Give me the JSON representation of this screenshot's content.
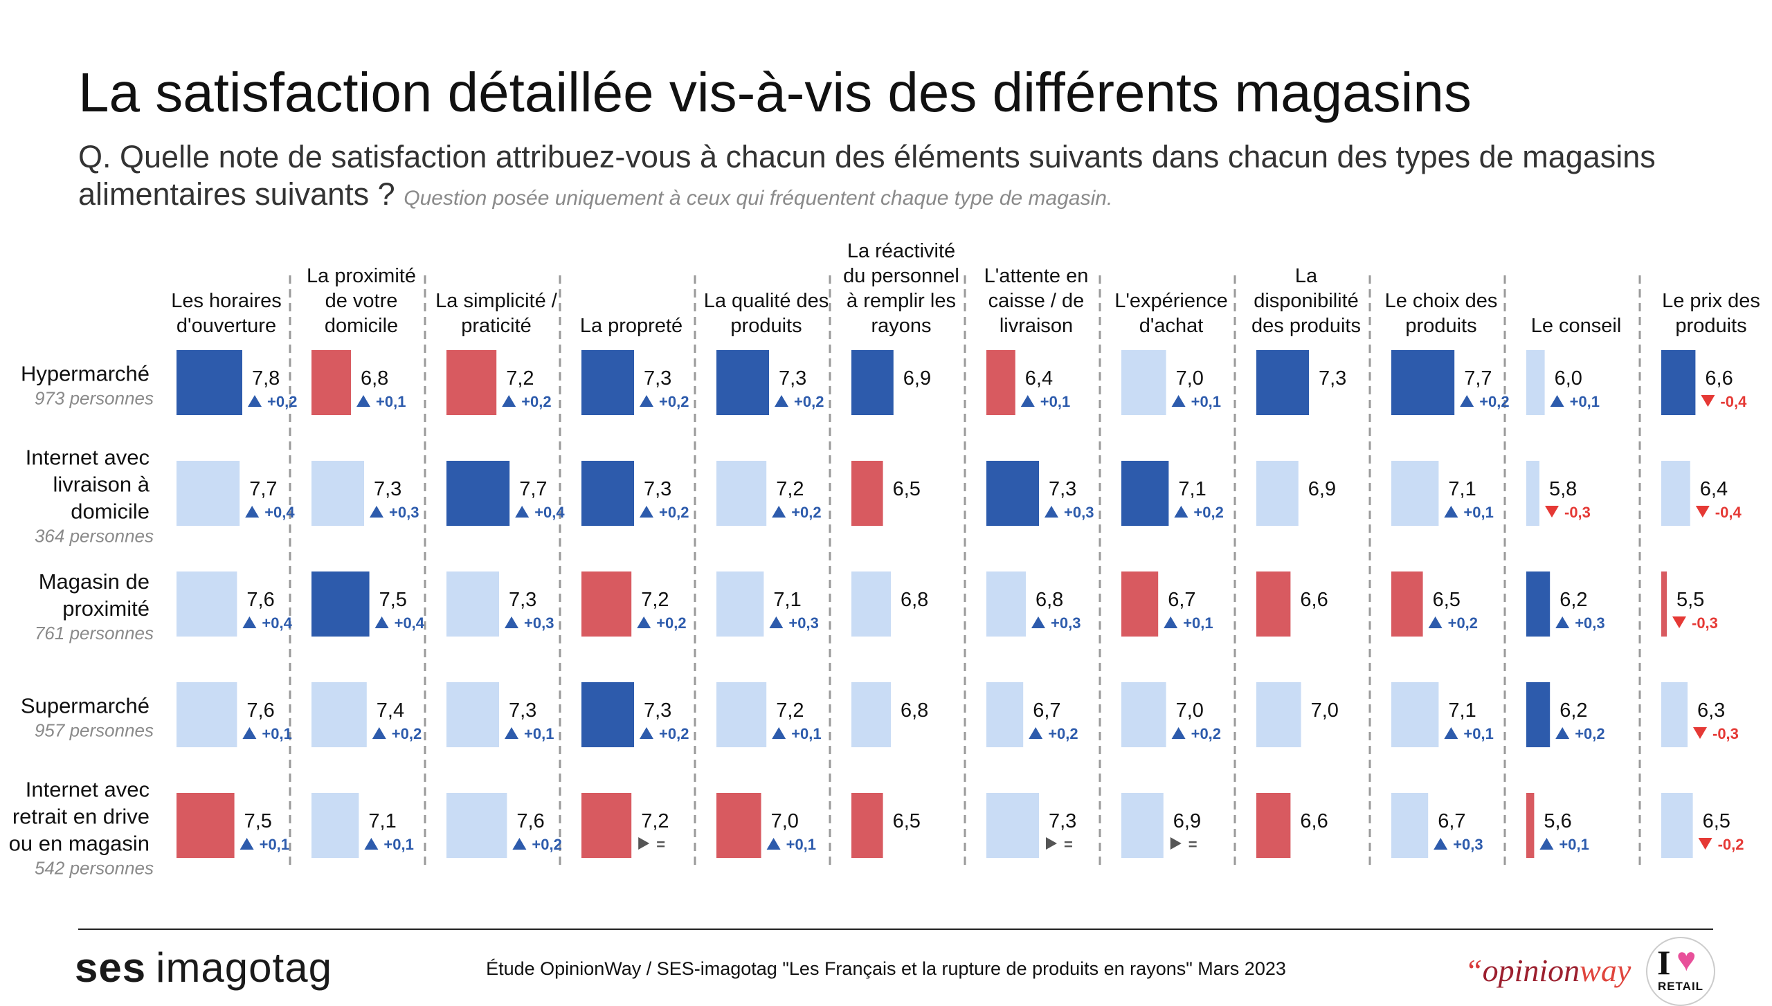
{
  "title": "La satisfaction détaillée vis-à-vis des différents magasins",
  "question": "Q. Quelle note de satisfaction attribuez-vous à chacun des éléments suivants dans chacun des types de magasins alimentaires suivants ?",
  "question_note": "Question posée uniquement à ceux qui fréquentent chaque type de magasin.",
  "footer": {
    "source": "Étude OpinionWay / SES-imagotag \"Les Français et la rupture de produits en rayons\" Mars 2023",
    "ses_logo_bold": "ses",
    "ses_logo_light": "imagotag",
    "opinionway_quote": "“",
    "opinionway_opinion": "opinion",
    "opinionway_way": "way",
    "iretail_i": "I",
    "iretail_heart": "♥",
    "iretail_label": "RETAIL"
  },
  "colors": {
    "above": "#2d5bac",
    "below": "#d85a60",
    "neutral": "#c9dcf5",
    "up": "#2d5bac",
    "down": "#e53935",
    "equal": "#555555"
  },
  "chart_data": {
    "type": "table",
    "columns": [
      {
        "label": [
          "Les horaires",
          "d'ouverture"
        ]
      },
      {
        "label": [
          "La proximité",
          "de votre",
          "domicile"
        ]
      },
      {
        "label": [
          "La simplicité /",
          "praticité"
        ]
      },
      {
        "label": [
          "La propreté"
        ]
      },
      {
        "label": [
          "La qualité des",
          "produits"
        ]
      },
      {
        "label": [
          "La réactivité",
          "du personnel",
          "à remplir les",
          "rayons"
        ]
      },
      {
        "label": [
          "L'attente en",
          "caisse / de",
          "livraison"
        ]
      },
      {
        "label": [
          "L'expérience",
          "d'achat"
        ]
      },
      {
        "label": [
          "La",
          "disponibilité",
          "des produits"
        ]
      },
      {
        "label": [
          "Le choix des",
          "produits"
        ]
      },
      {
        "label": [
          "Le conseil"
        ]
      },
      {
        "label": [
          "Le prix des",
          "produits"
        ]
      }
    ],
    "rows": [
      {
        "label": [
          "Hypermarché"
        ],
        "base": "973 personnes"
      },
      {
        "label": [
          "Internet avec",
          "livraison à",
          "domicile"
        ],
        "base": "364 personnes"
      },
      {
        "label": [
          "Magasin de",
          "proximité"
        ],
        "base": "761 personnes"
      },
      {
        "label": [
          "Supermarché"
        ],
        "base": "957 personnes"
      },
      {
        "label": [
          "Internet avec",
          "retrait en drive",
          "ou en magasin"
        ],
        "base": "542 personnes"
      }
    ],
    "cells": [
      [
        {
          "value": 7.8,
          "label": "7,8",
          "status": "above",
          "evolution": "+0,2",
          "trend": "up"
        },
        {
          "value": 6.8,
          "label": "6,8",
          "status": "below",
          "evolution": "+0,1",
          "trend": "up"
        },
        {
          "value": 7.2,
          "label": "7,2",
          "status": "below",
          "evolution": "+0,2",
          "trend": "up"
        },
        {
          "value": 7.3,
          "label": "7,3",
          "status": "above",
          "evolution": "+0,2",
          "trend": "up"
        },
        {
          "value": 7.3,
          "label": "7,3",
          "status": "above",
          "evolution": "+0,2",
          "trend": "up"
        },
        {
          "value": 6.9,
          "label": "6,9",
          "status": "above",
          "evolution": "",
          "trend": ""
        },
        {
          "value": 6.4,
          "label": "6,4",
          "status": "below",
          "evolution": "+0,1",
          "trend": "up"
        },
        {
          "value": 7.0,
          "label": "7,0",
          "status": "neutral",
          "evolution": "+0,1",
          "trend": "up"
        },
        {
          "value": 7.3,
          "label": "7,3",
          "status": "above",
          "evolution": "",
          "trend": ""
        },
        {
          "value": 7.7,
          "label": "7,7",
          "status": "above",
          "evolution": "+0,2",
          "trend": "up"
        },
        {
          "value": 6.0,
          "label": "6,0",
          "status": "neutral",
          "evolution": "+0,1",
          "trend": "up"
        },
        {
          "value": 6.6,
          "label": "6,6",
          "status": "above",
          "evolution": "-0,4",
          "trend": "down"
        }
      ],
      [
        {
          "value": 7.7,
          "label": "7,7",
          "status": "neutral",
          "evolution": "+0,4",
          "trend": "up"
        },
        {
          "value": 7.3,
          "label": "7,3",
          "status": "neutral",
          "evolution": "+0,3",
          "trend": "up"
        },
        {
          "value": 7.7,
          "label": "7,7",
          "status": "above",
          "evolution": "+0,4",
          "trend": "up"
        },
        {
          "value": 7.3,
          "label": "7,3",
          "status": "above",
          "evolution": "+0,2",
          "trend": "up"
        },
        {
          "value": 7.2,
          "label": "7,2",
          "status": "neutral",
          "evolution": "+0,2",
          "trend": "up"
        },
        {
          "value": 6.5,
          "label": "6,5",
          "status": "below",
          "evolution": "",
          "trend": ""
        },
        {
          "value": 7.3,
          "label": "7,3",
          "status": "above",
          "evolution": "+0,3",
          "trend": "up"
        },
        {
          "value": 7.1,
          "label": "7,1",
          "status": "above",
          "evolution": "+0,2",
          "trend": "up"
        },
        {
          "value": 6.9,
          "label": "6,9",
          "status": "neutral",
          "evolution": "",
          "trend": ""
        },
        {
          "value": 7.1,
          "label": "7,1",
          "status": "neutral",
          "evolution": "+0,1",
          "trend": "up"
        },
        {
          "value": 5.8,
          "label": "5,8",
          "status": "neutral",
          "evolution": "-0,3",
          "trend": "down"
        },
        {
          "value": 6.4,
          "label": "6,4",
          "status": "neutral",
          "evolution": "-0,4",
          "trend": "down"
        }
      ],
      [
        {
          "value": 7.6,
          "label": "7,6",
          "status": "neutral",
          "evolution": "+0,4",
          "trend": "up"
        },
        {
          "value": 7.5,
          "label": "7,5",
          "status": "above",
          "evolution": "+0,4",
          "trend": "up"
        },
        {
          "value": 7.3,
          "label": "7,3",
          "status": "neutral",
          "evolution": "+0,3",
          "trend": "up"
        },
        {
          "value": 7.2,
          "label": "7,2",
          "status": "below",
          "evolution": "+0,2",
          "trend": "up"
        },
        {
          "value": 7.1,
          "label": "7,1",
          "status": "neutral",
          "evolution": "+0,3",
          "trend": "up"
        },
        {
          "value": 6.8,
          "label": "6,8",
          "status": "neutral",
          "evolution": "",
          "trend": ""
        },
        {
          "value": 6.8,
          "label": "6,8",
          "status": "neutral",
          "evolution": "+0,3",
          "trend": "up"
        },
        {
          "value": 6.7,
          "label": "6,7",
          "status": "below",
          "evolution": "+0,1",
          "trend": "up"
        },
        {
          "value": 6.6,
          "label": "6,6",
          "status": "below",
          "evolution": "",
          "trend": ""
        },
        {
          "value": 6.5,
          "label": "6,5",
          "status": "below",
          "evolution": "+0,2",
          "trend": "up"
        },
        {
          "value": 6.2,
          "label": "6,2",
          "status": "above",
          "evolution": "+0,3",
          "trend": "up"
        },
        {
          "value": 5.5,
          "label": "5,5",
          "status": "below",
          "evolution": "-0,3",
          "trend": "down"
        }
      ],
      [
        {
          "value": 7.6,
          "label": "7,6",
          "status": "neutral",
          "evolution": "+0,1",
          "trend": "up"
        },
        {
          "value": 7.4,
          "label": "7,4",
          "status": "neutral",
          "evolution": "+0,2",
          "trend": "up"
        },
        {
          "value": 7.3,
          "label": "7,3",
          "status": "neutral",
          "evolution": "+0,1",
          "trend": "up"
        },
        {
          "value": 7.3,
          "label": "7,3",
          "status": "above",
          "evolution": "+0,2",
          "trend": "up"
        },
        {
          "value": 7.2,
          "label": "7,2",
          "status": "neutral",
          "evolution": "+0,1",
          "trend": "up"
        },
        {
          "value": 6.8,
          "label": "6,8",
          "status": "neutral",
          "evolution": "",
          "trend": ""
        },
        {
          "value": 6.7,
          "label": "6,7",
          "status": "neutral",
          "evolution": "+0,2",
          "trend": "up"
        },
        {
          "value": 7.0,
          "label": "7,0",
          "status": "neutral",
          "evolution": "+0,2",
          "trend": "up"
        },
        {
          "value": 7.0,
          "label": "7,0",
          "status": "neutral",
          "evolution": "",
          "trend": ""
        },
        {
          "value": 7.1,
          "label": "7,1",
          "status": "neutral",
          "evolution": "+0,1",
          "trend": "up"
        },
        {
          "value": 6.2,
          "label": "6,2",
          "status": "above",
          "evolution": "+0,2",
          "trend": "up"
        },
        {
          "value": 6.3,
          "label": "6,3",
          "status": "neutral",
          "evolution": "-0,3",
          "trend": "down"
        }
      ],
      [
        {
          "value": 7.5,
          "label": "7,5",
          "status": "below",
          "evolution": "+0,1",
          "trend": "up"
        },
        {
          "value": 7.1,
          "label": "7,1",
          "status": "neutral",
          "evolution": "+0,1",
          "trend": "up"
        },
        {
          "value": 7.6,
          "label": "7,6",
          "status": "neutral",
          "evolution": "+0,2",
          "trend": "up"
        },
        {
          "value": 7.2,
          "label": "7,2",
          "status": "below",
          "evolution": "=",
          "trend": "equal"
        },
        {
          "value": 7.0,
          "label": "7,0",
          "status": "below",
          "evolution": "+0,1",
          "trend": "up"
        },
        {
          "value": 6.5,
          "label": "6,5",
          "status": "below",
          "evolution": "",
          "trend": ""
        },
        {
          "value": 7.3,
          "label": "7,3",
          "status": "neutral",
          "evolution": "=",
          "trend": "equal"
        },
        {
          "value": 6.9,
          "label": "6,9",
          "status": "neutral",
          "evolution": "=",
          "trend": "equal"
        },
        {
          "value": 6.6,
          "label": "6,6",
          "status": "below",
          "evolution": "",
          "trend": ""
        },
        {
          "value": 6.7,
          "label": "6,7",
          "status": "neutral",
          "evolution": "+0,3",
          "trend": "up"
        },
        {
          "value": 5.6,
          "label": "5,6",
          "status": "below",
          "evolution": "+0,1",
          "trend": "up"
        },
        {
          "value": 6.5,
          "label": "6,5",
          "status": "neutral",
          "evolution": "-0,2",
          "trend": "down"
        }
      ]
    ]
  }
}
